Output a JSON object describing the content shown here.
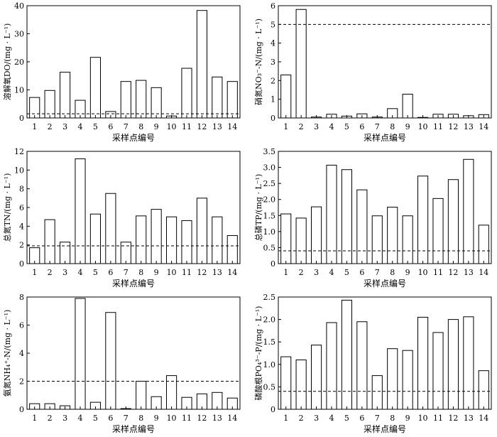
{
  "chart_data": [
    {
      "type": "bar",
      "xlabel": "采样点编号",
      "ylabel": "溶解氧DO/(mg · L⁻¹)",
      "categories": [
        "1",
        "2",
        "3",
        "4",
        "5",
        "6",
        "7",
        "8",
        "9",
        "10",
        "11",
        "12",
        "13",
        "14"
      ],
      "values": [
        7.3,
        9.8,
        16.3,
        6.3,
        21.6,
        2.3,
        13.0,
        13.4,
        10.8,
        0.7,
        17.7,
        38.3,
        14.6,
        13.0
      ],
      "ylim": [
        0,
        40
      ],
      "yticks": [
        "0",
        "10",
        "20",
        "30",
        "40"
      ],
      "reference_line": 1.5
    },
    {
      "type": "bar",
      "xlabel": "采样点编号",
      "ylabel": "硝氮NO₃⁻-N/(mg · L⁻¹)",
      "categories": [
        "1",
        "2",
        "3",
        "4",
        "5",
        "6",
        "7",
        "8",
        "9",
        "10",
        "11",
        "12",
        "13",
        "14"
      ],
      "values": [
        2.3,
        5.8,
        0.05,
        0.2,
        0.1,
        0.22,
        0.05,
        0.5,
        1.27,
        0.03,
        0.2,
        0.2,
        0.12,
        0.18
      ],
      "ylim": [
        0,
        6
      ],
      "yticks": [
        "0",
        "1",
        "2",
        "3",
        "4",
        "5",
        "6"
      ],
      "reference_line": 5.0
    },
    {
      "type": "bar",
      "xlabel": "采样点编号",
      "ylabel": "总氮TN/(mg · L⁻¹)",
      "categories": [
        "1",
        "2",
        "3",
        "4",
        "5",
        "6",
        "7",
        "8",
        "9",
        "10",
        "11",
        "12",
        "13",
        "14"
      ],
      "values": [
        1.7,
        4.7,
        2.3,
        11.2,
        5.3,
        7.5,
        2.3,
        5.1,
        5.8,
        5.0,
        4.6,
        7.0,
        5.0,
        3.0
      ],
      "ylim": [
        0,
        12
      ],
      "yticks": [
        "0",
        "2",
        "4",
        "6",
        "8",
        "10",
        "12"
      ],
      "reference_line": 1.9
    },
    {
      "type": "bar",
      "xlabel": "采样点编号",
      "ylabel": "总磷TP/(mg · L⁻¹)",
      "categories": [
        "1",
        "2",
        "3",
        "4",
        "5",
        "6",
        "7",
        "8",
        "9",
        "10",
        "11",
        "12",
        "13",
        "14"
      ],
      "values": [
        1.55,
        1.42,
        1.77,
        3.07,
        2.93,
        2.3,
        1.49,
        1.76,
        1.49,
        2.73,
        2.03,
        2.62,
        3.25,
        1.2
      ],
      "ylim": [
        0,
        3.5
      ],
      "yticks": [
        "0",
        "0.5",
        "1.0",
        "1.5",
        "2.0",
        "2.5",
        "3.0",
        "3.5"
      ],
      "reference_line": 0.4
    },
    {
      "type": "bar",
      "xlabel": "采样点编号",
      "ylabel": "氨氮NH₄⁺-N/(mg · L⁻¹)",
      "categories": [
        "1",
        "2",
        "3",
        "4",
        "5",
        "6",
        "7",
        "8",
        "9",
        "10",
        "11",
        "12",
        "13",
        "14"
      ],
      "values": [
        0.4,
        0.4,
        0.25,
        7.9,
        0.5,
        6.9,
        0.05,
        2.0,
        0.9,
        2.4,
        0.85,
        1.1,
        1.2,
        0.8
      ],
      "ylim": [
        0,
        8
      ],
      "yticks": [
        "0",
        "2",
        "4",
        "6",
        "8"
      ],
      "reference_line": 2.0
    },
    {
      "type": "bar",
      "xlabel": "采样点编号",
      "ylabel": "磷酸根PO₄³⁻-P/(mg · L⁻¹)",
      "categories": [
        "1",
        "2",
        "3",
        "4",
        "5",
        "6",
        "7",
        "8",
        "9",
        "10",
        "11",
        "12",
        "13",
        "14"
      ],
      "values": [
        1.17,
        1.1,
        1.43,
        1.93,
        2.43,
        1.95,
        0.75,
        1.35,
        1.31,
        2.05,
        1.71,
        2.0,
        2.06,
        0.86
      ],
      "ylim": [
        0,
        2.5
      ],
      "yticks": [
        "0",
        "0.5",
        "1.0",
        "1.5",
        "2.0",
        "2.5"
      ],
      "reference_line": 0.4
    }
  ]
}
